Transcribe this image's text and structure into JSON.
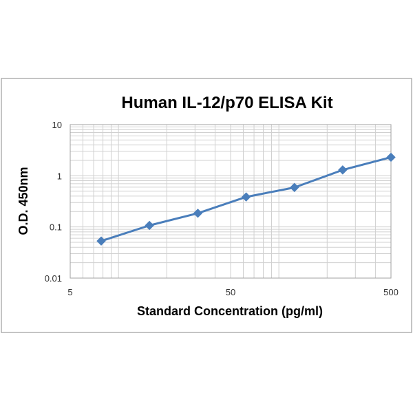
{
  "chart_data": {
    "type": "line",
    "title": "Human IL-12/p70 ELISA Kit",
    "xlabel": "Standard Concentration (pg/ml)",
    "ylabel": "O.D. 450nm",
    "x_scale": "log",
    "y_scale": "log",
    "xlim": [
      5,
      500
    ],
    "ylim": [
      0.01,
      10
    ],
    "x_ticks": [
      5,
      50,
      500
    ],
    "x_tick_labels": [
      "5",
      "50",
      "500"
    ],
    "y_ticks": [
      0.01,
      0.1,
      1,
      10
    ],
    "y_tick_labels": [
      "0.01",
      "0.1",
      "1",
      "10"
    ],
    "grid": true,
    "legend": "none",
    "series": [
      {
        "x": [
          7.8,
          15.6,
          31.25,
          62.5,
          125,
          250,
          500
        ],
        "y": [
          0.053,
          0.107,
          0.185,
          0.385,
          0.59,
          1.3,
          2.3
        ],
        "marker": "diamond",
        "color": "#4a7ebb"
      }
    ],
    "colors": {
      "line": "#4a7ebb",
      "grid": "#d0d0d0",
      "frame": "#8a8a8a",
      "plot_border": "#a0a0a0"
    }
  }
}
